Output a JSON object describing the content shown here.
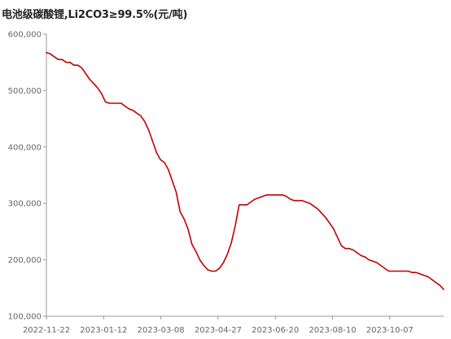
{
  "chart_data": {
    "type": "line",
    "title": "电池级碳酸锂,Li2CO3≥99.5%(元/吨)",
    "xlabel": "",
    "ylabel": "",
    "ylim": [
      100000,
      600000
    ],
    "yticks": [
      "600,000",
      "500,000",
      "400,000",
      "300,000",
      "200,000",
      "100,000"
    ],
    "ytick_values": [
      600000,
      500000,
      400000,
      300000,
      200000,
      100000
    ],
    "xticks": [
      "2022-11-22",
      "2023-01-12",
      "2023-03-08",
      "2023-04-27",
      "2023-06-20",
      "2023-08-10",
      "2023-10-07"
    ],
    "grid": false,
    "legend": "none",
    "color": "#c00000",
    "series": [
      {
        "values": [
          567500,
          565000,
          560000,
          555000,
          555000,
          550000,
          550000,
          545000,
          545000,
          540000,
          530000,
          520000,
          512500,
          505000,
          495000,
          480000,
          477500,
          477500,
          477500,
          477500,
          472500,
          467500,
          465000,
          460000,
          455000,
          445000,
          430000,
          410000,
          390000,
          377500,
          372500,
          360000,
          340000,
          320000,
          285000,
          272500,
          255000,
          227500,
          215000,
          200000,
          190000,
          182500,
          180000,
          180000,
          185000,
          195000,
          210000,
          230000,
          260000,
          297500,
          297500,
          297500,
          302500,
          307500,
          310000,
          312500,
          315000,
          315000,
          315000,
          315000,
          315000,
          312500,
          307500,
          305000,
          305000,
          305000,
          302500,
          300000,
          295000,
          290000,
          282500,
          275000,
          265000,
          255000,
          240000,
          225000,
          220000,
          220000,
          217500,
          212500,
          207500,
          205000,
          200000,
          197500,
          195000,
          190000,
          185000,
          180000,
          180000,
          180000,
          180000,
          180000,
          180000,
          177500,
          177500,
          175000,
          172500,
          170000,
          165000,
          160000,
          155000,
          147500
        ]
      }
    ]
  }
}
